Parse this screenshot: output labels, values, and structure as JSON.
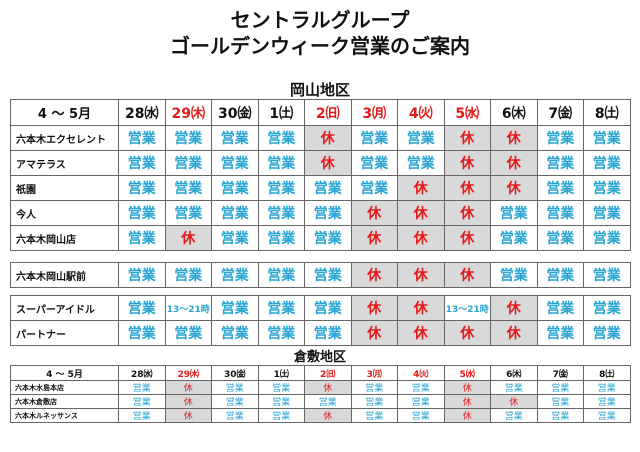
{
  "title_line1": "セントラルグループ",
  "title_line2": "ゴールデンウィーク営業のご案内",
  "okayama": {
    "section_title": "岡山地区",
    "header_label": "4 ～ 5月",
    "days": [
      {
        "label": "28㈬",
        "color": "#111111"
      },
      {
        "label": "29㈭",
        "color": "#e51a1a"
      },
      {
        "label": "30㈮",
        "color": "#111111"
      },
      {
        "label": "1㈯",
        "color": "#111111"
      },
      {
        "label": "2㈰",
        "color": "#e51a1a"
      },
      {
        "label": "3㈪",
        "color": "#e51a1a"
      },
      {
        "label": "4㈫",
        "color": "#e51a1a"
      },
      {
        "label": "5㈬",
        "color": "#e51a1a"
      },
      {
        "label": "6㈭",
        "color": "#111111"
      },
      {
        "label": "7㈮",
        "color": "#111111"
      },
      {
        "label": "8㈯",
        "color": "#111111"
      }
    ],
    "group1": [
      {
        "name": "六本木エクセレント",
        "cells": [
          "営業",
          "営業",
          "営業",
          "営業",
          "休",
          "営業",
          "営業",
          "休",
          "休",
          "営業",
          "営業"
        ]
      },
      {
        "name": "アマテラス",
        "cells": [
          "営業",
          "営業",
          "営業",
          "営業",
          "休",
          "営業",
          "営業",
          "休",
          "休",
          "営業",
          "営業"
        ]
      },
      {
        "name": "祇園",
        "cells": [
          "営業",
          "営業",
          "営業",
          "営業",
          "営業",
          "営業",
          "休",
          "休",
          "休",
          "営業",
          "営業"
        ]
      },
      {
        "name": "今人",
        "cells": [
          "営業",
          "営業",
          "営業",
          "営業",
          "営業",
          "休",
          "休",
          "休",
          "営業",
          "営業",
          "営業"
        ]
      },
      {
        "name": "六本木岡山店",
        "cells": [
          "営業",
          "休",
          "営業",
          "営業",
          "営業",
          "休",
          "休",
          "休",
          "営業",
          "営業",
          "営業"
        ]
      }
    ],
    "group2": [
      {
        "name": "六本木岡山駅前",
        "cells": [
          "営業",
          "営業",
          "営業",
          "営業",
          "営業",
          "休",
          "休",
          "休",
          "営業",
          "営業",
          "営業"
        ]
      }
    ],
    "group3": [
      {
        "name": "スーパーアイドル",
        "cells": [
          "営業",
          "13～21時",
          "営業",
          "営業",
          "営業",
          "休",
          "休",
          "13～21時",
          "休",
          "営業",
          "営業"
        ]
      },
      {
        "name": "パートナー",
        "cells": [
          "営業",
          "営業",
          "営業",
          "営業",
          "営業",
          "休",
          "休",
          "休",
          "休",
          "営業",
          "営業"
        ]
      }
    ]
  },
  "kurashiki": {
    "section_title": "倉敷地区",
    "header_label": "4 ～ 5月",
    "days": [
      {
        "label": "28㈬",
        "color": "#111111"
      },
      {
        "label": "29㈭",
        "color": "#e51a1a"
      },
      {
        "label": "30㈮",
        "color": "#111111"
      },
      {
        "label": "1㈯",
        "color": "#111111"
      },
      {
        "label": "2㈰",
        "color": "#e51a1a"
      },
      {
        "label": "3㈪",
        "color": "#e51a1a"
      },
      {
        "label": "4㈫",
        "color": "#e51a1a"
      },
      {
        "label": "5㈬",
        "color": "#e51a1a"
      },
      {
        "label": "6㈭",
        "color": "#111111"
      },
      {
        "label": "7㈮",
        "color": "#111111"
      },
      {
        "label": "8㈯",
        "color": "#111111"
      }
    ],
    "rows": [
      {
        "name": "六本木水島本店",
        "cells": [
          "営業",
          "休",
          "営業",
          "営業",
          "休",
          "営業",
          "営業",
          "休",
          "営業",
          "営業",
          "営業"
        ]
      },
      {
        "name": "六本木倉敷店",
        "cells": [
          "営業",
          "休",
          "営業",
          "営業",
          "営業",
          "営業",
          "営業",
          "休",
          "休",
          "営業",
          "営業"
        ]
      },
      {
        "name": "六本木ルネッサンス",
        "cells": [
          "営業",
          "休",
          "営業",
          "営業",
          "休",
          "営業",
          "営業",
          "休",
          "営業",
          "営業",
          "営業"
        ]
      }
    ]
  },
  "colors": {
    "open": "#29a5d3",
    "closed": "#e51a1a",
    "closed_bg": "#d9d9d9"
  }
}
